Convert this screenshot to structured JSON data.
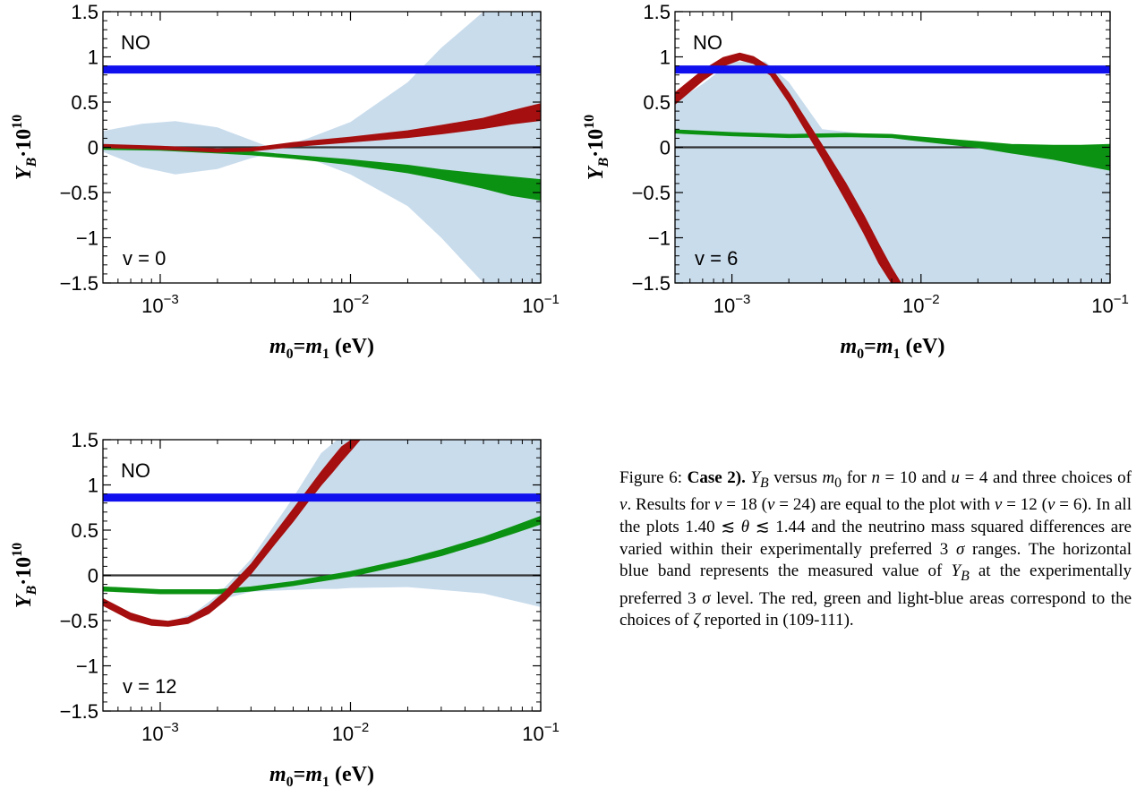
{
  "colors": {
    "measured_band": "#1010ee",
    "red_area": "#a50f0f",
    "green_area": "#0c9212",
    "lightblue_area": "#c9dcec",
    "zero_line": "#333333"
  },
  "chart_data": [
    {
      "type": "area",
      "scale": {
        "x": "log",
        "y": "linear"
      },
      "xlim": [
        0.0005,
        0.1
      ],
      "ylim": [
        -1.5,
        1.5
      ],
      "xticks": [
        {
          "label": "10",
          "exp": "−3",
          "value": 0.001
        },
        {
          "label": "10",
          "exp": "−2",
          "value": 0.01
        },
        {
          "label": "10",
          "exp": "−1",
          "value": 0.1
        }
      ],
      "yticks": [
        {
          "label": "1.5",
          "value": 1.5
        },
        {
          "label": "1",
          "value": 1
        },
        {
          "label": "0.5",
          "value": 0.5
        },
        {
          "label": "0",
          "value": 0
        },
        {
          "label": "−0.5",
          "value": -0.5
        },
        {
          "label": "−1",
          "value": -1
        },
        {
          "label": "−1.5",
          "value": -1.5
        }
      ],
      "xlabel": "m0=m1 (eV)",
      "ylabel": "YB·10^10",
      "tag_top": "NO",
      "tag_bottom": "v = 0",
      "measured_value": 0.86,
      "bands": {
        "lightblue": {
          "x": [
            0.0005,
            0.0008,
            0.0012,
            0.002,
            0.003,
            0.004,
            0.006,
            0.01,
            0.02,
            0.03,
            0.05,
            0.07,
            0.1
          ],
          "upper": [
            0.18,
            0.26,
            0.29,
            0.22,
            0.08,
            -0.02,
            0.1,
            0.28,
            0.72,
            1.1,
            1.5,
            1.5,
            1.5
          ],
          "lower": [
            -0.05,
            -0.22,
            -0.3,
            -0.24,
            -0.12,
            -0.06,
            -0.12,
            -0.3,
            -0.65,
            -1.0,
            -1.5,
            -1.5,
            -1.5
          ]
        },
        "red": {
          "x": [
            0.0005,
            0.001,
            0.002,
            0.003,
            0.005,
            0.01,
            0.02,
            0.03,
            0.05,
            0.07,
            0.1
          ],
          "upper": [
            0.03,
            0.01,
            -0.02,
            -0.01,
            0.05,
            0.11,
            0.18,
            0.24,
            0.32,
            0.4,
            0.48
          ],
          "lower": [
            0.0,
            -0.02,
            -0.05,
            -0.04,
            0.01,
            0.06,
            0.11,
            0.15,
            0.21,
            0.26,
            0.3
          ]
        },
        "green": {
          "x": [
            0.0005,
            0.001,
            0.002,
            0.003,
            0.005,
            0.01,
            0.02,
            0.03,
            0.05,
            0.07,
            0.1
          ],
          "upper": [
            0.01,
            0.0,
            -0.03,
            -0.05,
            -0.09,
            -0.14,
            -0.2,
            -0.25,
            -0.3,
            -0.33,
            -0.36
          ],
          "lower": [
            -0.02,
            -0.03,
            -0.06,
            -0.08,
            -0.12,
            -0.19,
            -0.28,
            -0.35,
            -0.45,
            -0.53,
            -0.58
          ]
        }
      }
    },
    {
      "type": "area",
      "scale": {
        "x": "log",
        "y": "linear"
      },
      "xlim": [
        0.0005,
        0.1
      ],
      "ylim": [
        -1.5,
        1.5
      ],
      "xticks": [
        {
          "label": "10",
          "exp": "−3",
          "value": 0.001
        },
        {
          "label": "10",
          "exp": "−2",
          "value": 0.01
        },
        {
          "label": "10",
          "exp": "−1",
          "value": 0.1
        }
      ],
      "yticks": [
        {
          "label": "1.5",
          "value": 1.5
        },
        {
          "label": "1",
          "value": 1
        },
        {
          "label": "0.5",
          "value": 0.5
        },
        {
          "label": "0",
          "value": 0
        },
        {
          "label": "−0.5",
          "value": -0.5
        },
        {
          "label": "−1",
          "value": -1
        },
        {
          "label": "−1.5",
          "value": -1.5
        }
      ],
      "xlabel": "m0=m1 (eV)",
      "ylabel": "YB·10^10",
      "tag_top": "NO",
      "tag_bottom": "v = 6",
      "measured_value": 0.86,
      "bands": {
        "lightblue": {
          "x": [
            0.0005,
            0.0007,
            0.001,
            0.0015,
            0.002,
            0.003,
            0.005,
            0.007,
            0.01,
            0.02,
            0.03,
            0.05,
            0.07,
            0.1
          ],
          "upper": [
            0.5,
            0.7,
            0.95,
            0.95,
            0.72,
            0.2,
            0.15,
            0.14,
            0.12,
            0.06,
            0.03,
            0.01,
            0.01,
            0.01
          ],
          "lower": [
            -1.5,
            -1.5,
            -1.5,
            -1.5,
            -1.5,
            -1.5,
            -1.5,
            -1.5,
            -1.5,
            -1.5,
            -1.5,
            -1.5,
            -1.5,
            -1.5
          ]
        },
        "red": {
          "x": [
            0.0005,
            0.0007,
            0.0009,
            0.0011,
            0.0013,
            0.0016,
            0.002,
            0.0025,
            0.003,
            0.004,
            0.005,
            0.006,
            0.007,
            0.0078
          ],
          "upper": [
            0.6,
            0.85,
            0.99,
            1.04,
            1.0,
            0.88,
            0.6,
            0.28,
            0.02,
            -0.4,
            -0.76,
            -1.08,
            -1.34,
            -1.5
          ],
          "lower": [
            0.48,
            0.74,
            0.9,
            0.97,
            0.93,
            0.8,
            0.5,
            0.16,
            -0.12,
            -0.58,
            -0.95,
            -1.28,
            -1.5,
            -1.5
          ]
        },
        "green": {
          "x": [
            0.0005,
            0.001,
            0.002,
            0.004,
            0.007,
            0.01,
            0.02,
            0.03,
            0.05,
            0.07,
            0.1
          ],
          "upper": [
            0.19,
            0.16,
            0.14,
            0.15,
            0.14,
            0.11,
            0.06,
            0.03,
            0.02,
            0.02,
            0.03
          ],
          "lower": [
            0.16,
            0.13,
            0.11,
            0.12,
            0.11,
            0.07,
            0.0,
            -0.06,
            -0.13,
            -0.19,
            -0.25
          ]
        }
      }
    },
    {
      "type": "area",
      "scale": {
        "x": "log",
        "y": "linear"
      },
      "xlim": [
        0.0005,
        0.1
      ],
      "ylim": [
        -1.5,
        1.5
      ],
      "xticks": [
        {
          "label": "10",
          "exp": "−3",
          "value": 0.001
        },
        {
          "label": "10",
          "exp": "−2",
          "value": 0.01
        },
        {
          "label": "10",
          "exp": "−1",
          "value": 0.1
        }
      ],
      "yticks": [
        {
          "label": "1.5",
          "value": 1.5
        },
        {
          "label": "1",
          "value": 1
        },
        {
          "label": "0.5",
          "value": 0.5
        },
        {
          "label": "0",
          "value": 0
        },
        {
          "label": "−0.5",
          "value": -0.5
        },
        {
          "label": "−1",
          "value": -1
        },
        {
          "label": "−1.5",
          "value": -1.5
        }
      ],
      "xlabel": "m0=m1 (eV)",
      "ylabel": "YB·10^10",
      "tag_top": "NO",
      "tag_bottom": "v = 12",
      "measured_value": 0.86,
      "bands": {
        "lightblue": {
          "x": [
            0.0005,
            0.0008,
            0.0011,
            0.0015,
            0.002,
            0.003,
            0.005,
            0.007,
            0.0085,
            0.01,
            0.02,
            0.05,
            0.1
          ],
          "upper": [
            -0.26,
            -0.48,
            -0.52,
            -0.42,
            -0.22,
            0.18,
            0.86,
            1.35,
            1.5,
            1.5,
            1.5,
            1.5,
            1.5
          ],
          "lower": [
            -0.32,
            -0.52,
            -0.56,
            -0.48,
            -0.28,
            -0.18,
            -0.16,
            -0.15,
            -0.15,
            -0.14,
            -0.13,
            -0.2,
            -0.35
          ]
        },
        "red": {
          "x": [
            0.0005,
            0.0007,
            0.0009,
            0.0011,
            0.0014,
            0.0018,
            0.0022,
            0.003,
            0.004,
            0.005,
            0.006,
            0.007,
            0.008,
            0.009,
            0.0102,
            0.0112
          ],
          "upper": [
            -0.26,
            -0.42,
            -0.49,
            -0.51,
            -0.47,
            -0.34,
            -0.18,
            0.12,
            0.46,
            0.73,
            0.95,
            1.14,
            1.29,
            1.42,
            1.5,
            1.5
          ],
          "lower": [
            -0.33,
            -0.49,
            -0.55,
            -0.56,
            -0.53,
            -0.42,
            -0.27,
            0.02,
            0.35,
            0.6,
            0.82,
            1.0,
            1.14,
            1.27,
            1.4,
            1.5
          ]
        },
        "green": {
          "x": [
            0.0005,
            0.001,
            0.002,
            0.003,
            0.005,
            0.01,
            0.02,
            0.03,
            0.05,
            0.07,
            0.1
          ],
          "upper": [
            -0.13,
            -0.16,
            -0.16,
            -0.13,
            -0.07,
            0.04,
            0.18,
            0.28,
            0.42,
            0.53,
            0.65
          ],
          "lower": [
            -0.17,
            -0.2,
            -0.2,
            -0.17,
            -0.11,
            -0.01,
            0.13,
            0.22,
            0.36,
            0.46,
            0.57
          ]
        }
      }
    }
  ],
  "caption": {
    "label": "Figure 6:",
    "case": "Case 2).",
    "t01": "Y",
    "t02": "B",
    "t03": " versus ",
    "t04": "m",
    "t05": "0",
    "t06": " for ",
    "t07": "n",
    "t08": " = 10 and ",
    "t09": "u",
    "t10": " = 4 and three choices of ",
    "t11": "v",
    "t12": ". Results for ",
    "t13": "v",
    "t14": " = 18 (",
    "t15": "v",
    "t16": " = 24) are equal to the plot with ",
    "t17": "v",
    "t18": " = 12 (",
    "t19": "v",
    "t20": " = 6). In all the plots 1.40 ≲ ",
    "t21": "θ",
    "t22": " ≲ 1.44 and the neutrino mass squared differences are varied within their experimentally preferred 3 ",
    "t23": "σ",
    "t24": " ranges. The horizontal blue band represents the measured value of ",
    "t25": "Y",
    "t26": "B",
    "t27": " at the experimentally preferred 3 ",
    "t28": "σ",
    "t29": " level. The red, green and light-blue areas correspond to the choices of ",
    "t30": "ζ",
    "t31": " reported in (109-111)."
  }
}
